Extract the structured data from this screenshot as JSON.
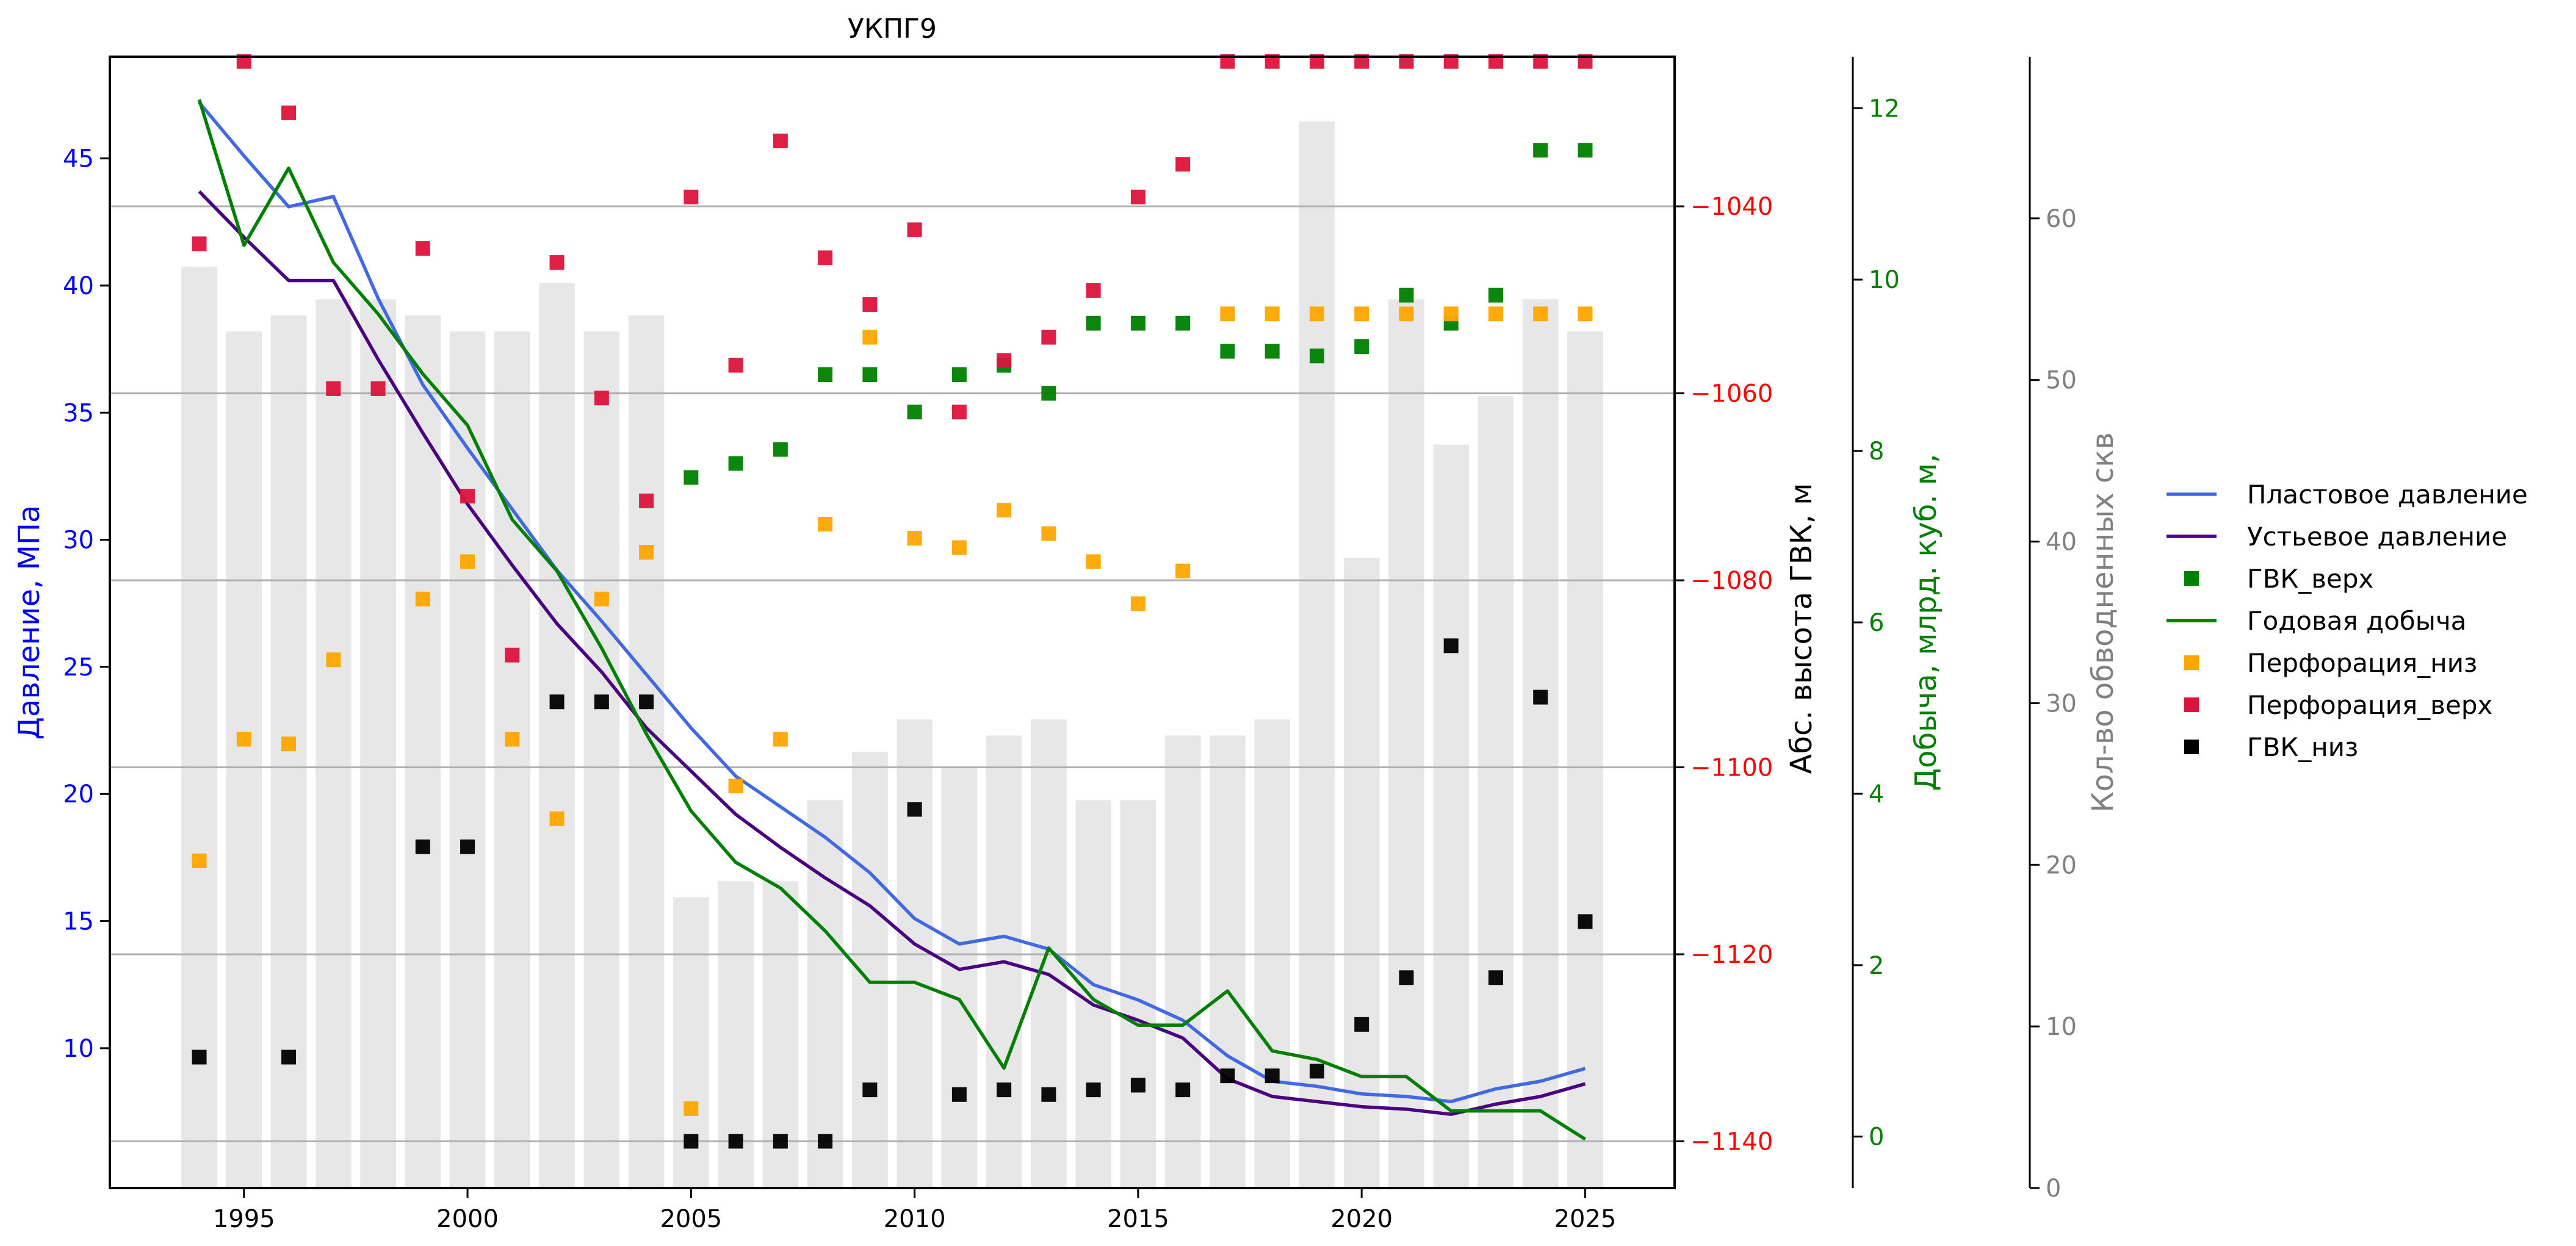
{
  "chart_data": {
    "type": "line",
    "title": "УКПГ9",
    "xlim": [
      1992.0,
      2027.0
    ],
    "x_ticks": [
      1995,
      2000,
      2005,
      2010,
      2015,
      2020,
      2025
    ],
    "axes": {
      "pressure": {
        "label": "Давление, МПа",
        "color": "#0000ff",
        "lim": [
          4.5,
          49.0
        ],
        "ticks": [
          10,
          15,
          20,
          25,
          30,
          35,
          40,
          45
        ]
      },
      "gvk": {
        "label": "Абс. высота ГВК, м",
        "color": "#000000",
        "tick_color": "#ff0000",
        "lim": [
          -1145,
          -1024
        ],
        "ticks": [
          -1040,
          -1060,
          -1080,
          -1100,
          -1120,
          -1140
        ]
      },
      "production": {
        "label": "Добыча, млрд. куб. м,",
        "color": "#008000",
        "lim": [
          -0.6,
          12.6
        ],
        "ticks": [
          0,
          2,
          4,
          6,
          8,
          10,
          12
        ]
      },
      "wells": {
        "label": "Кол-во обводненных скв",
        "color": "#808080",
        "lim": [
          0,
          70
        ],
        "ticks": [
          0,
          10,
          20,
          30,
          40,
          50,
          60
        ]
      }
    },
    "years": [
      1994,
      1995,
      1996,
      1997,
      1998,
      1999,
      2000,
      2001,
      2002,
      2003,
      2004,
      2005,
      2006,
      2007,
      2008,
      2009,
      2010,
      2011,
      2012,
      2013,
      2014,
      2015,
      2016,
      2017,
      2018,
      2019,
      2020,
      2021,
      2022,
      2023,
      2024,
      2025
    ],
    "wells_bars": [
      57,
      53,
      54,
      55,
      55,
      54,
      53,
      53,
      56,
      53,
      54,
      18,
      19,
      19,
      24,
      27,
      29,
      26,
      28,
      29,
      24,
      24,
      28,
      28,
      29,
      66,
      39,
      55,
      46,
      49,
      55,
      53
    ],
    "series": [
      {
        "name": "Пластовое давление",
        "kind": "line",
        "axis": "pressure",
        "color": "#4169e1",
        "x": [
          1994,
          1995,
          1996,
          1997,
          1998,
          1999,
          2000,
          2001,
          2002,
          2003,
          2004,
          2005,
          2006,
          2007,
          2008,
          2009,
          2010,
          2011,
          2012,
          2013,
          2014,
          2015,
          2016,
          2017,
          2018,
          2019,
          2020,
          2021,
          2022,
          2023,
          2024,
          2025
        ],
        "y": [
          47.2,
          45.1,
          43.1,
          43.5,
          39.5,
          36.1,
          33.6,
          31.2,
          28.8,
          26.8,
          24.7,
          22.6,
          20.7,
          19.5,
          18.3,
          16.9,
          15.1,
          14.1,
          14.4,
          13.9,
          12.5,
          11.9,
          11.1,
          9.7,
          8.7,
          8.5,
          8.2,
          8.1,
          7.9,
          8.4,
          8.7,
          9.2
        ]
      },
      {
        "name": "Устьевое давление",
        "kind": "line",
        "axis": "pressure",
        "color": "#4b0082",
        "x": [
          1994,
          1995,
          1996,
          1997,
          1998,
          1999,
          2000,
          2001,
          2002,
          2003,
          2004,
          2005,
          2006,
          2007,
          2008,
          2009,
          2010,
          2011,
          2012,
          2013,
          2014,
          2015,
          2016,
          2017,
          2018,
          2019,
          2020,
          2021,
          2022,
          2023,
          2024,
          2025
        ],
        "y": [
          43.7,
          41.9,
          40.2,
          40.2,
          37.1,
          34.2,
          31.4,
          29.0,
          26.7,
          24.8,
          22.6,
          20.9,
          19.2,
          17.9,
          16.7,
          15.6,
          14.1,
          13.1,
          13.4,
          12.9,
          11.7,
          11.1,
          10.4,
          8.8,
          8.1,
          7.9,
          7.7,
          7.6,
          7.4,
          7.8,
          8.1,
          8.6
        ]
      },
      {
        "name": "ГВК_верх",
        "kind": "scatter",
        "axis": "gvk",
        "color": "#008000",
        "x": [
          2005,
          2006,
          2007,
          2008,
          2009,
          2010,
          2011,
          2012,
          2013,
          2014,
          2015,
          2016,
          2017,
          2018,
          2019,
          2020,
          2021,
          2022,
          2023,
          2024,
          2025
        ],
        "y": [
          -1069.0,
          -1067.5,
          -1066.0,
          -1058.0,
          -1058.0,
          -1062.0,
          -1058.0,
          -1057.0,
          -1060.0,
          -1052.5,
          -1052.5,
          -1052.5,
          -1055.5,
          -1055.5,
          -1056.0,
          -1055.0,
          -1049.5,
          -1052.5,
          -1049.5,
          -1034.0,
          -1034.0
        ]
      },
      {
        "name": "Годовая добыча",
        "kind": "line",
        "axis": "production",
        "color": "#008000",
        "x": [
          1994,
          1995,
          1996,
          1997,
          1998,
          1999,
          2000,
          2001,
          2002,
          2003,
          2004,
          2005,
          2006,
          2007,
          2008,
          2009,
          2010,
          2011,
          2012,
          2013,
          2014,
          2015,
          2016,
          2017,
          2018,
          2019,
          2020,
          2021,
          2022,
          2023,
          2024,
          2025
        ],
        "y": [
          12.1,
          10.4,
          11.3,
          10.2,
          9.6,
          8.9,
          8.3,
          7.2,
          6.6,
          5.7,
          4.7,
          3.8,
          3.2,
          2.9,
          2.4,
          1.8,
          1.8,
          1.6,
          0.8,
          2.2,
          1.6,
          1.3,
          1.3,
          1.7,
          1.0,
          0.9,
          0.7,
          0.7,
          0.3,
          0.3,
          0.3,
          -0.03
        ]
      },
      {
        "name": "Перфорация_низ",
        "kind": "scatter",
        "axis": "gvk",
        "color": "#ffa500",
        "x": [
          1994,
          1995,
          1996,
          1997,
          1999,
          2000,
          2001,
          2002,
          2003,
          2004,
          2005,
          2006,
          2007,
          2008,
          2009,
          2010,
          2011,
          2012,
          2013,
          2014,
          2015,
          2016,
          2017,
          2018,
          2019,
          2020,
          2021,
          2022,
          2023,
          2024,
          2025
        ],
        "y": [
          -1110.0,
          -1097.0,
          -1097.5,
          -1088.5,
          -1082.0,
          -1078.0,
          -1097.0,
          -1105.5,
          -1082.0,
          -1077.0,
          -1136.5,
          -1102.0,
          -1097.0,
          -1074.0,
          -1054.0,
          -1075.5,
          -1076.5,
          -1072.5,
          -1075.0,
          -1078.0,
          -1082.5,
          -1079.0,
          -1051.5,
          -1051.5,
          -1051.5,
          -1051.5,
          -1051.5,
          -1051.5,
          -1051.5,
          -1051.5,
          -1051.5
        ]
      },
      {
        "name": "Перфорация_верх",
        "kind": "scatter",
        "axis": "gvk",
        "color": "#dc143c",
        "x": [
          1994,
          1995,
          1996,
          1997,
          1998,
          1999,
          2000,
          2001,
          2002,
          2003,
          2004,
          2005,
          2006,
          2007,
          2008,
          2009,
          2010,
          2011,
          2012,
          2013,
          2014,
          2015,
          2016,
          2017,
          2018,
          2019,
          2020,
          2021,
          2022,
          2023,
          2024,
          2025
        ],
        "y": [
          -1044.0,
          -1024.5,
          -1030.0,
          -1059.5,
          -1059.5,
          -1044.5,
          -1071.0,
          -1088.0,
          -1046.0,
          -1060.5,
          -1071.5,
          -1039.0,
          -1057.0,
          -1033.0,
          -1045.5,
          -1050.5,
          -1042.5,
          -1062.0,
          -1056.5,
          -1054.0,
          -1049.0,
          -1039.0,
          -1035.5,
          -1024.5,
          -1024.5,
          -1024.5,
          -1024.5,
          -1024.5,
          -1024.5,
          -1024.5,
          -1024.5,
          -1024.5
        ]
      },
      {
        "name": "ГВК_низ",
        "kind": "scatter",
        "axis": "gvk",
        "color": "#000000",
        "x": [
          1994,
          1996,
          1999,
          2000,
          2002,
          2003,
          2004,
          2005,
          2006,
          2007,
          2008,
          2009,
          2010,
          2011,
          2012,
          2013,
          2014,
          2015,
          2016,
          2017,
          2018,
          2019,
          2020,
          2021,
          2022,
          2023,
          2024,
          2025
        ],
        "y": [
          -1131.0,
          -1131.0,
          -1108.5,
          -1108.5,
          -1093.0,
          -1093.0,
          -1093.0,
          -1140.0,
          -1140.0,
          -1140.0,
          -1140.0,
          -1134.5,
          -1104.5,
          -1135.0,
          -1134.5,
          -1135.0,
          -1134.5,
          -1134.0,
          -1134.5,
          -1133.0,
          -1133.0,
          -1132.5,
          -1127.5,
          -1122.5,
          -1087.0,
          -1122.5,
          -1092.5,
          -1116.5
        ]
      }
    ],
    "legend": {
      "placement": "right",
      "entries": [
        {
          "label": "Пластовое давление",
          "kind": "line",
          "color": "#4169e1"
        },
        {
          "label": "Устьевое давление",
          "kind": "line",
          "color": "#4b0082"
        },
        {
          "label": "ГВК_верх",
          "kind": "marker",
          "color": "#008000"
        },
        {
          "label": "Годовая добыча",
          "kind": "line",
          "color": "#008000"
        },
        {
          "label": "Перфорация_низ",
          "kind": "marker",
          "color": "#ffa500"
        },
        {
          "label": "Перфорация_верх",
          "kind": "marker",
          "color": "#dc143c"
        },
        {
          "label": "ГВК_низ",
          "kind": "marker",
          "color": "#000000"
        }
      ]
    },
    "grid": "horizontal",
    "bar_color": "#d3d3d3"
  }
}
